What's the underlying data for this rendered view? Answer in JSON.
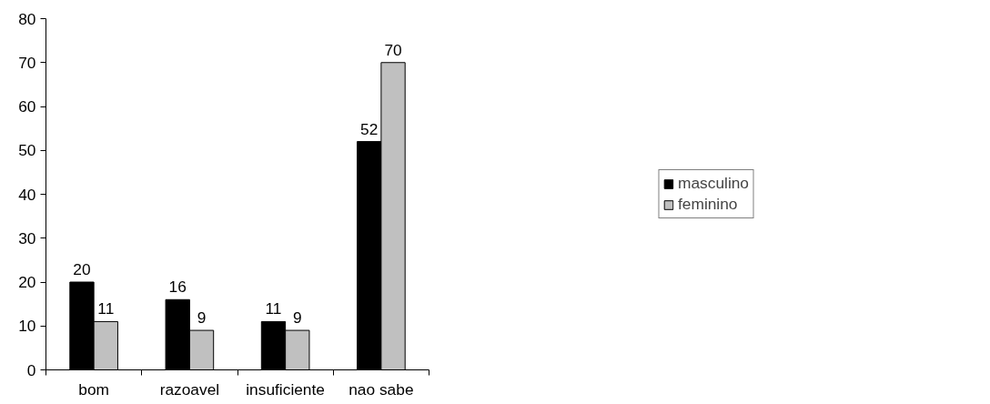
{
  "chart_data": {
    "type": "bar",
    "categories": [
      "bom",
      "razoavel",
      "insuficiente",
      "nao sabe"
    ],
    "series": [
      {
        "name": "masculino",
        "color": "#000000",
        "values": [
          20,
          16,
          11,
          52
        ]
      },
      {
        "name": "feminino",
        "color": "#c0c0c0",
        "values": [
          11,
          9,
          9,
          70
        ]
      }
    ],
    "ylim": [
      0,
      80
    ],
    "yticks": [
      0,
      10,
      20,
      30,
      40,
      50,
      60,
      70,
      80
    ],
    "grid": false,
    "legend": "right",
    "data_labels": true
  }
}
